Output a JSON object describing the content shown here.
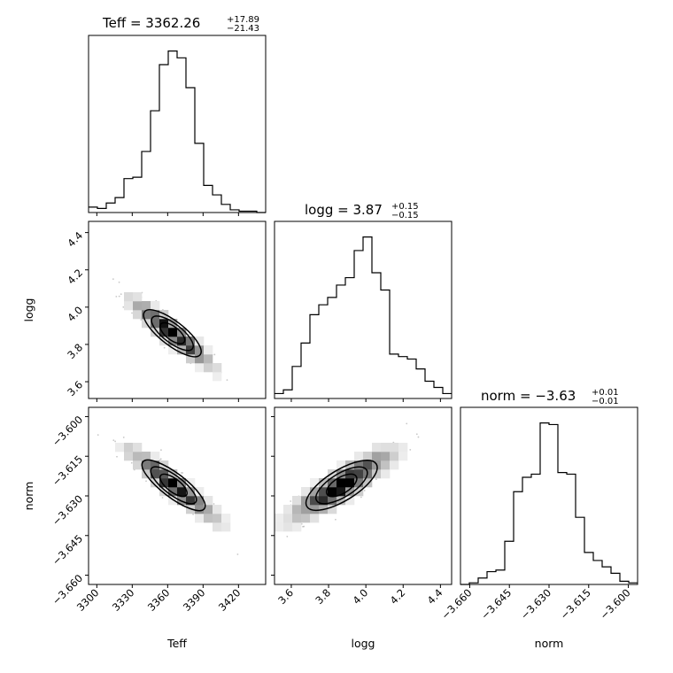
{
  "chart_data": {
    "type": "corner",
    "parameters": [
      "Teff",
      "logg",
      "norm"
    ],
    "titles": [
      {
        "param": "Teff",
        "prefix": "Teff = ",
        "median": "3362.26",
        "plus": "+17.89",
        "minus": "−21.43"
      },
      {
        "param": "logg",
        "prefix": "logg = ",
        "median": "3.87",
        "plus": "+0.15",
        "minus": "−0.15"
      },
      {
        "param": "norm",
        "prefix": "norm = ",
        "median": "−3.63",
        "plus": "+0.01",
        "minus": "−0.01"
      }
    ],
    "axis_labels": {
      "teff": "Teff",
      "logg": "logg",
      "norm": "norm"
    },
    "ranges": {
      "teff": [
        3293,
        3443
      ],
      "logg": [
        3.51,
        4.46
      ],
      "norm": [
        -3.6635,
        -3.5965
      ]
    },
    "ticks": {
      "teff": [
        "3300",
        "3330",
        "3360",
        "3390",
        "3420"
      ],
      "logg": [
        "3.6",
        "3.8",
        "4.0",
        "4.2",
        "4.4"
      ],
      "logg_y": [
        "3.6",
        "3.8",
        "4.0",
        "4.2",
        "4.4"
      ],
      "norm": [
        "−3.660",
        "−3.645",
        "−3.630",
        "−3.615",
        "−3.600"
      ]
    },
    "histograms": {
      "teff": {
        "bin_start": 3293,
        "bin_width": 7.5,
        "counts": [
          4,
          3,
          7,
          11,
          25,
          26,
          45,
          75,
          109,
          119,
          114,
          92,
          51,
          20,
          13,
          6,
          2,
          1,
          1,
          0
        ]
      },
      "logg": {
        "bin_start": 3.51,
        "bin_width": 0.0475,
        "counts": [
          4,
          7,
          26,
          45,
          68,
          76,
          82,
          92,
          98,
          120,
          131,
          102,
          88,
          36,
          34,
          32,
          24,
          14,
          9,
          4
        ]
      },
      "norm": {
        "bin_start": -3.6635,
        "bin_width": 0.00335,
        "counts": [
          0,
          1,
          4,
          8,
          9,
          27,
          58,
          67,
          69,
          101,
          100,
          70,
          69,
          42,
          20,
          15,
          11,
          7,
          2,
          1
        ]
      }
    },
    "pairs": [
      {
        "x": "teff",
        "y": "logg",
        "center": [
          3364,
          3.86
        ],
        "rx": 38,
        "ry": 0.2,
        "rho": -0.93
      },
      {
        "x": "teff",
        "y": "norm",
        "center": [
          3365,
          -3.626
        ],
        "rx": 42,
        "ry": 0.0152,
        "rho": -0.94
      },
      {
        "x": "logg",
        "y": "norm",
        "center": [
          3.87,
          -3.626
        ],
        "rx": 0.3,
        "ry": 0.0148,
        "rho": 0.88
      }
    ]
  }
}
